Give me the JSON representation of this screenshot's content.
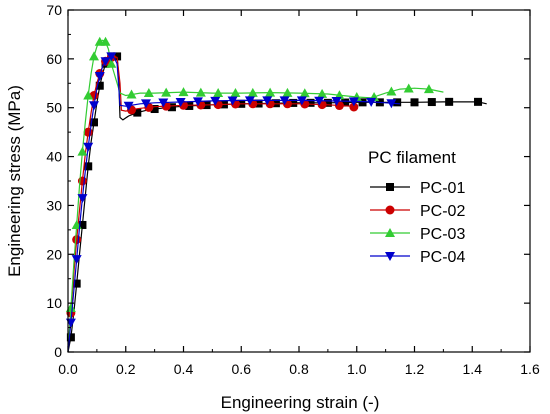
{
  "chart_data": {
    "type": "line",
    "title": "",
    "xlabel": "Engineering strain (-)",
    "ylabel": "Engineering stress (MPa)",
    "xlim": [
      0,
      1.6
    ],
    "ylim": [
      0,
      70
    ],
    "x_ticks": [
      "0.0",
      "0.2",
      "0.4",
      "0.6",
      "0.8",
      "1.0",
      "1.2",
      "1.4",
      "1.6"
    ],
    "y_ticks": [
      "0",
      "10",
      "20",
      "30",
      "40",
      "50",
      "60",
      "70"
    ],
    "grid": false,
    "legend": {
      "title": "PC filament",
      "placement": "right-middle"
    },
    "series": [
      {
        "name": "PC-01",
        "color": "#000000",
        "marker": "square",
        "x": [
          0.0,
          0.01,
          0.02,
          0.03,
          0.04,
          0.05,
          0.06,
          0.07,
          0.08,
          0.09,
          0.1,
          0.11,
          0.12,
          0.13,
          0.14,
          0.15,
          0.16,
          0.17,
          0.175,
          0.18,
          0.19,
          0.21,
          0.24,
          0.28,
          0.34,
          0.4,
          0.5,
          0.6,
          0.7,
          0.8,
          0.9,
          1.0,
          1.1,
          1.2,
          1.3,
          1.38,
          1.42,
          1.45
        ],
        "y": [
          0.0,
          3.0,
          8.0,
          14.0,
          20.0,
          26.0,
          32.0,
          38.0,
          43.0,
          47.0,
          51.0,
          54.5,
          57.0,
          59.0,
          60.0,
          60.5,
          60.8,
          60.5,
          57.0,
          48.0,
          47.5,
          48.3,
          49.0,
          49.6,
          50.0,
          50.3,
          50.6,
          50.8,
          50.9,
          51.0,
          51.0,
          51.1,
          51.1,
          51.1,
          51.2,
          51.2,
          51.2,
          50.8
        ],
        "marker_x": [
          0.01,
          0.03,
          0.05,
          0.07,
          0.09,
          0.11,
          0.13,
          0.15,
          0.17,
          0.24,
          0.3,
          0.36,
          0.42,
          0.48,
          0.54,
          0.6,
          0.66,
          0.72,
          0.78,
          0.84,
          0.9,
          0.96,
          1.02,
          1.08,
          1.14,
          1.2,
          1.26,
          1.32,
          1.42
        ]
      },
      {
        "name": "PC-02",
        "color": "#cc0000",
        "marker": "circle",
        "x": [
          0.0,
          0.01,
          0.02,
          0.03,
          0.04,
          0.05,
          0.06,
          0.07,
          0.08,
          0.09,
          0.1,
          0.11,
          0.12,
          0.13,
          0.14,
          0.15,
          0.16,
          0.17,
          0.18,
          0.185,
          0.2,
          0.24,
          0.3,
          0.4,
          0.5,
          0.6,
          0.7,
          0.8,
          0.9,
          0.98,
          1.0
        ],
        "y": [
          0.0,
          8.0,
          16.0,
          23.0,
          29.0,
          35.0,
          40.5,
          45.0,
          49.0,
          52.5,
          55.0,
          57.0,
          58.5,
          59.5,
          60.0,
          60.3,
          60.5,
          60.3,
          55.0,
          49.5,
          49.3,
          49.8,
          50.2,
          50.5,
          50.6,
          50.8,
          50.8,
          50.8,
          50.6,
          50.3,
          50.0
        ],
        "marker_x": [
          0.01,
          0.03,
          0.05,
          0.07,
          0.09,
          0.11,
          0.13,
          0.15,
          0.22,
          0.28,
          0.34,
          0.4,
          0.46,
          0.52,
          0.58,
          0.64,
          0.7,
          0.76,
          0.82,
          0.88,
          0.94,
          0.99
        ]
      },
      {
        "name": "PC-03",
        "color": "#33cc33",
        "marker": "triangle-up",
        "x": [
          0.0,
          0.01,
          0.02,
          0.03,
          0.04,
          0.05,
          0.06,
          0.07,
          0.08,
          0.09,
          0.1,
          0.11,
          0.12,
          0.13,
          0.14,
          0.15,
          0.16,
          0.17,
          0.18,
          0.2,
          0.25,
          0.3,
          0.4,
          0.5,
          0.6,
          0.7,
          0.8,
          0.9,
          0.95,
          1.0,
          1.05,
          1.1,
          1.15,
          1.2,
          1.25,
          1.3
        ],
        "y": [
          0.0,
          9.0,
          18.0,
          26.0,
          34.0,
          41.0,
          47.0,
          52.5,
          57.0,
          60.5,
          62.5,
          63.5,
          63.8,
          63.5,
          62.0,
          59.0,
          57.0,
          55.0,
          53.0,
          52.5,
          53.0,
          53.0,
          53.2,
          53.0,
          53.0,
          53.1,
          53.0,
          52.8,
          52.5,
          52.2,
          52.0,
          53.0,
          53.8,
          54.0,
          53.8,
          53.2
        ],
        "marker_x": [
          0.01,
          0.03,
          0.05,
          0.07,
          0.09,
          0.11,
          0.13,
          0.15,
          0.22,
          0.28,
          0.34,
          0.4,
          0.46,
          0.52,
          0.58,
          0.64,
          0.7,
          0.76,
          0.82,
          0.88,
          0.94,
          1.0,
          1.06,
          1.12,
          1.18,
          1.25
        ]
      },
      {
        "name": "PC-04",
        "color": "#0000cc",
        "marker": "triangle-down",
        "x": [
          0.0,
          0.01,
          0.02,
          0.03,
          0.04,
          0.05,
          0.06,
          0.07,
          0.08,
          0.09,
          0.1,
          0.11,
          0.12,
          0.13,
          0.14,
          0.15,
          0.16,
          0.17,
          0.18,
          0.2,
          0.25,
          0.3,
          0.4,
          0.5,
          0.6,
          0.7,
          0.8,
          0.9,
          1.0,
          1.05,
          1.1,
          1.15
        ],
        "y": [
          0.0,
          6.0,
          12.5,
          19.0,
          25.5,
          31.5,
          37.0,
          42.0,
          46.5,
          50.5,
          54.0,
          56.5,
          58.5,
          59.5,
          60.2,
          60.5,
          60.2,
          59.0,
          50.5,
          50.3,
          50.8,
          51.0,
          51.2,
          51.4,
          51.5,
          51.5,
          51.5,
          51.4,
          51.3,
          51.2,
          51.0,
          50.8
        ],
        "marker_x": [
          0.01,
          0.03,
          0.05,
          0.07,
          0.09,
          0.11,
          0.13,
          0.15,
          0.21,
          0.27,
          0.33,
          0.39,
          0.45,
          0.51,
          0.57,
          0.63,
          0.69,
          0.75,
          0.81,
          0.87,
          0.93,
          0.99,
          1.05,
          1.12
        ]
      }
    ]
  }
}
